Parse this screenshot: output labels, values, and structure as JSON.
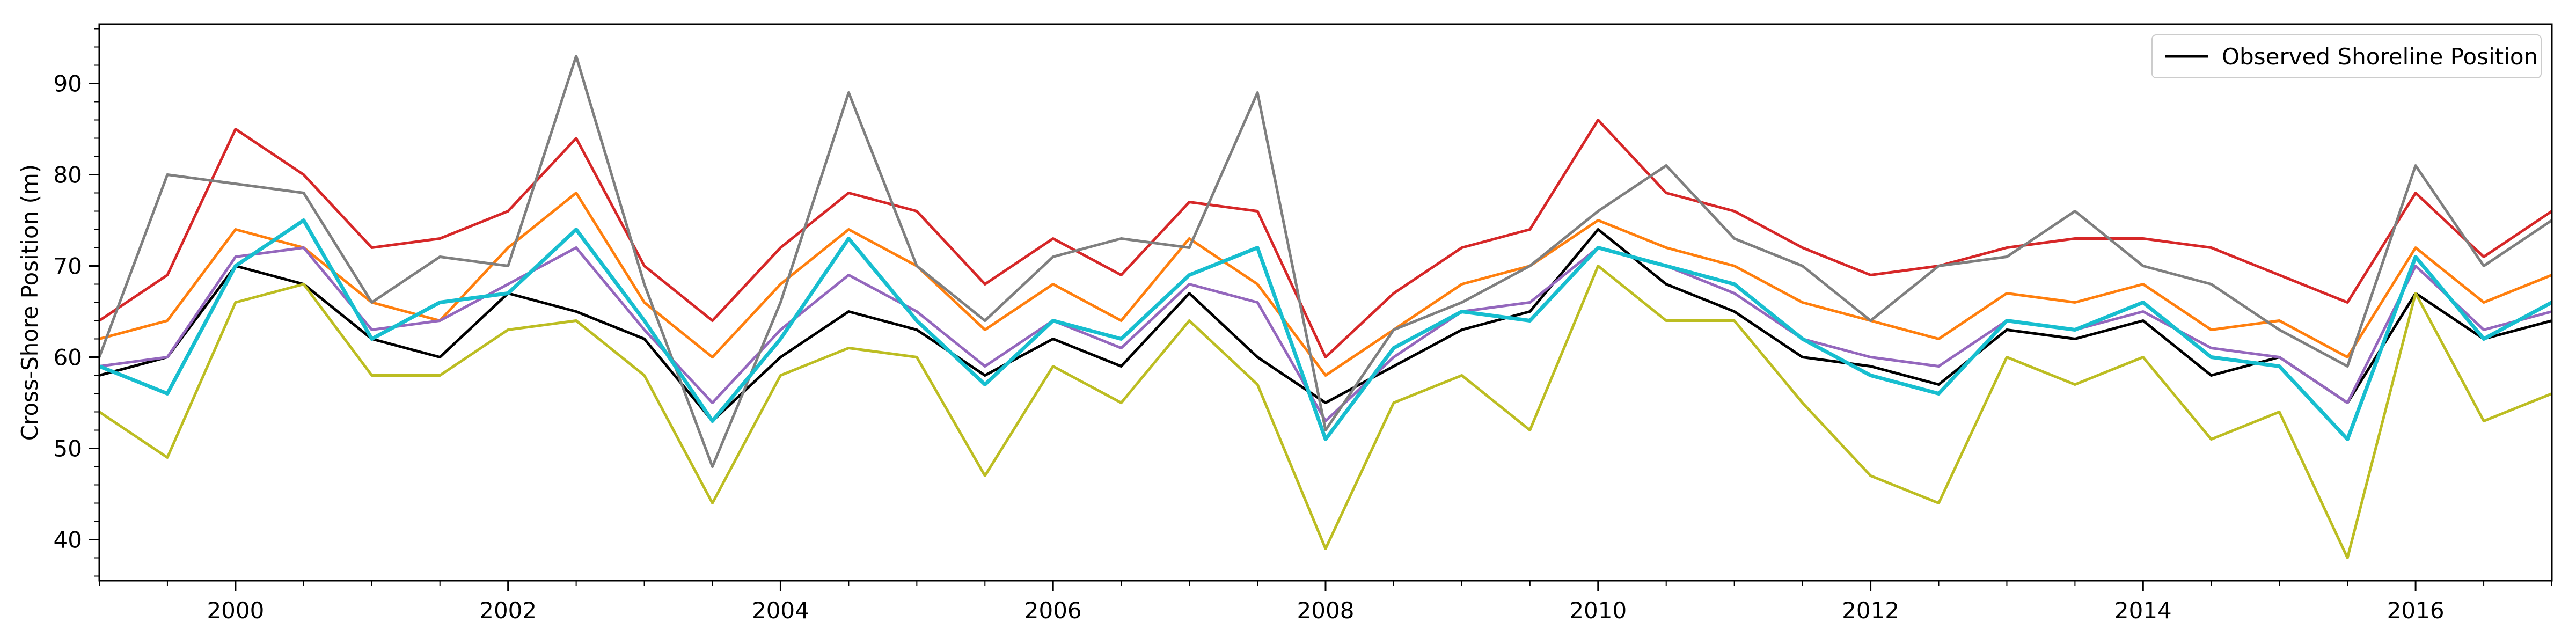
{
  "chart_data": {
    "type": "line",
    "title": "",
    "xlabel": "",
    "ylabel": "Cross-Shore Position (m)",
    "xlim": [
      "1999-01-01",
      "2017-01-01"
    ],
    "ylim": [
      35.5,
      96.5
    ],
    "xticks": [
      "2000",
      "2002",
      "2004",
      "2006",
      "2008",
      "2010",
      "2012",
      "2014",
      "2016"
    ],
    "yticks": [
      40,
      50,
      60,
      70,
      80,
      90
    ],
    "grid": false,
    "legend": {
      "placement": "top-right",
      "entries": [
        "Observed Shoreline Position"
      ]
    },
    "series": [
      {
        "name": "Observed Shoreline Position",
        "color": "#000000",
        "x": [
          "1999-01",
          "1999-07",
          "2000-01",
          "2000-07",
          "2001-01",
          "2001-07",
          "2002-01",
          "2002-07",
          "2003-01",
          "2003-07",
          "2004-01",
          "2004-07",
          "2005-01",
          "2005-07",
          "2006-01",
          "2006-07",
          "2007-01",
          "2007-07",
          "2008-01",
          "2008-07",
          "2009-01",
          "2009-07",
          "2010-01",
          "2010-07",
          "2011-01",
          "2011-07",
          "2012-01",
          "2012-07",
          "2013-01",
          "2013-07",
          "2014-01",
          "2014-07",
          "2015-01",
          "2015-07",
          "2016-01",
          "2016-07",
          "2017-01"
        ],
        "values": [
          58,
          60,
          70,
          68,
          62,
          60,
          67,
          65,
          62,
          53,
          60,
          65,
          63,
          58,
          62,
          59,
          67,
          60,
          55,
          59,
          63,
          65,
          74,
          68,
          65,
          60,
          59,
          57,
          63,
          62,
          64,
          58,
          60,
          55,
          67,
          62,
          64
        ]
      },
      {
        "color": "#ff7f0e",
        "x": [
          "1999-01",
          "1999-07",
          "2000-01",
          "2000-07",
          "2001-01",
          "2001-07",
          "2002-01",
          "2002-07",
          "2003-01",
          "2003-07",
          "2004-01",
          "2004-07",
          "2005-01",
          "2005-07",
          "2006-01",
          "2006-07",
          "2007-01",
          "2007-07",
          "2008-01",
          "2008-07",
          "2009-01",
          "2009-07",
          "2010-01",
          "2010-07",
          "2011-01",
          "2011-07",
          "2012-01",
          "2012-07",
          "2013-01",
          "2013-07",
          "2014-01",
          "2014-07",
          "2015-01",
          "2015-07",
          "2016-01",
          "2016-07",
          "2017-01"
        ],
        "values": [
          62,
          64,
          74,
          72,
          66,
          64,
          72,
          78,
          66,
          60,
          68,
          74,
          70,
          63,
          68,
          64,
          73,
          68,
          58,
          63,
          68,
          70,
          75,
          72,
          70,
          66,
          64,
          62,
          67,
          66,
          68,
          63,
          64,
          60,
          72,
          66,
          69
        ]
      },
      {
        "color": "#d62728",
        "x": [
          "1999-01",
          "1999-07",
          "2000-01",
          "2000-07",
          "2001-01",
          "2001-07",
          "2002-01",
          "2002-07",
          "2003-01",
          "2003-07",
          "2004-01",
          "2004-07",
          "2005-01",
          "2005-07",
          "2006-01",
          "2006-07",
          "2007-01",
          "2007-07",
          "2008-01",
          "2008-07",
          "2009-01",
          "2009-07",
          "2010-01",
          "2010-07",
          "2011-01",
          "2011-07",
          "2012-01",
          "2012-07",
          "2013-01",
          "2013-07",
          "2014-01",
          "2014-07",
          "2015-01",
          "2015-07",
          "2016-01",
          "2016-07",
          "2017-01"
        ],
        "values": [
          64,
          69,
          85,
          80,
          72,
          73,
          76,
          84,
          70,
          64,
          72,
          78,
          76,
          68,
          73,
          69,
          77,
          76,
          60,
          67,
          72,
          74,
          86,
          78,
          76,
          72,
          69,
          70,
          72,
          73,
          73,
          72,
          69,
          66,
          78,
          71,
          76
        ]
      },
      {
        "color": "#9467bd",
        "x": [
          "1999-01",
          "1999-07",
          "2000-01",
          "2000-07",
          "2001-01",
          "2001-07",
          "2002-01",
          "2002-07",
          "2003-01",
          "2003-07",
          "2004-01",
          "2004-07",
          "2005-01",
          "2005-07",
          "2006-01",
          "2006-07",
          "2007-01",
          "2007-07",
          "2008-01",
          "2008-07",
          "2009-01",
          "2009-07",
          "2010-01",
          "2010-07",
          "2011-01",
          "2011-07",
          "2012-01",
          "2012-07",
          "2013-01",
          "2013-07",
          "2014-01",
          "2014-07",
          "2015-01",
          "2015-07",
          "2016-01",
          "2016-07",
          "2017-01"
        ],
        "values": [
          59,
          60,
          71,
          72,
          63,
          64,
          68,
          72,
          63,
          55,
          63,
          69,
          65,
          59,
          64,
          61,
          68,
          66,
          53,
          60,
          65,
          66,
          72,
          70,
          67,
          62,
          60,
          59,
          64,
          63,
          65,
          61,
          60,
          55,
          70,
          63,
          65
        ]
      },
      {
        "color": "#7f7f7f",
        "x": [
          "1999-01",
          "1999-07",
          "2000-01",
          "2000-07",
          "2001-01",
          "2001-07",
          "2002-01",
          "2002-07",
          "2003-01",
          "2003-07",
          "2004-01",
          "2004-07",
          "2005-01",
          "2005-07",
          "2006-01",
          "2006-07",
          "2007-01",
          "2007-07",
          "2008-01",
          "2008-07",
          "2009-01",
          "2009-07",
          "2010-01",
          "2010-07",
          "2011-01",
          "2011-07",
          "2012-01",
          "2012-07",
          "2013-01",
          "2013-07",
          "2014-01",
          "2014-07",
          "2015-01",
          "2015-07",
          "2016-01",
          "2016-07",
          "2017-01"
        ],
        "values": [
          60,
          80,
          79,
          78,
          66,
          71,
          70,
          93,
          68,
          48,
          66,
          89,
          70,
          64,
          71,
          73,
          72,
          89,
          52,
          63,
          66,
          70,
          76,
          81,
          73,
          70,
          64,
          70,
          71,
          76,
          70,
          68,
          63,
          59,
          81,
          70,
          75
        ]
      },
      {
        "color": "#bcbd22",
        "x": [
          "1999-01",
          "1999-07",
          "2000-01",
          "2000-07",
          "2001-01",
          "2001-07",
          "2002-01",
          "2002-07",
          "2003-01",
          "2003-07",
          "2004-01",
          "2004-07",
          "2005-01",
          "2005-07",
          "2006-01",
          "2006-07",
          "2007-01",
          "2007-07",
          "2008-01",
          "2008-07",
          "2009-01",
          "2009-07",
          "2010-01",
          "2010-07",
          "2011-01",
          "2011-07",
          "2012-01",
          "2012-07",
          "2013-01",
          "2013-07",
          "2014-01",
          "2014-07",
          "2015-01",
          "2015-07",
          "2016-01",
          "2016-07",
          "2017-01"
        ],
        "values": [
          54,
          49,
          66,
          68,
          58,
          58,
          63,
          64,
          58,
          44,
          58,
          61,
          60,
          47,
          59,
          55,
          64,
          57,
          39,
          55,
          58,
          52,
          70,
          64,
          64,
          55,
          47,
          44,
          60,
          57,
          60,
          51,
          54,
          38,
          67,
          53,
          56
        ]
      },
      {
        "color": "#17becf",
        "x": [
          "1999-01",
          "1999-07",
          "2000-01",
          "2000-07",
          "2001-01",
          "2001-07",
          "2002-01",
          "2002-07",
          "2003-01",
          "2003-07",
          "2004-01",
          "2004-07",
          "2005-01",
          "2005-07",
          "2006-01",
          "2006-07",
          "2007-01",
          "2007-07",
          "2008-01",
          "2008-07",
          "2009-01",
          "2009-07",
          "2010-01",
          "2010-07",
          "2011-01",
          "2011-07",
          "2012-01",
          "2012-07",
          "2013-01",
          "2013-07",
          "2014-01",
          "2014-07",
          "2015-01",
          "2015-07",
          "2016-01",
          "2016-07",
          "2017-01"
        ],
        "values": [
          59,
          56,
          70,
          75,
          62,
          66,
          67,
          74,
          64,
          53,
          62,
          73,
          64,
          57,
          64,
          62,
          69,
          72,
          51,
          61,
          65,
          64,
          72,
          70,
          68,
          62,
          58,
          56,
          64,
          63,
          66,
          60,
          59,
          51,
          71,
          62,
          66
        ]
      }
    ]
  }
}
